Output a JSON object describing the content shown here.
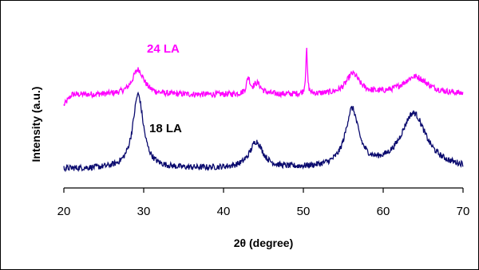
{
  "chart_data": {
    "type": "line",
    "xlabel": "2θ (degree)",
    "ylabel": "Intensity (a.u.)",
    "xlim": [
      20,
      70
    ],
    "xticks": [
      20,
      30,
      40,
      50,
      60,
      70
    ],
    "grid": false,
    "series": [
      {
        "name": "24 LA",
        "color": "#ff00ff",
        "baseline": 0.62,
        "peaks": [
          {
            "x": 29.3,
            "height": 0.21,
            "width": 0.9
          },
          {
            "x": 43.1,
            "height": 0.13,
            "width": 0.25
          },
          {
            "x": 44.2,
            "height": 0.09,
            "width": 0.6
          },
          {
            "x": 50.4,
            "height": 0.37,
            "width": 0.12
          },
          {
            "x": 56.2,
            "height": 0.17,
            "width": 1.0
          },
          {
            "x": 64.0,
            "height": 0.15,
            "width": 1.9
          }
        ],
        "noise": 0.025
      },
      {
        "name": "18 LA",
        "color": "#0a0a6e",
        "baseline": 0.0,
        "peaks": [
          {
            "x": 29.3,
            "height": 0.62,
            "width": 0.8
          },
          {
            "x": 44.1,
            "height": 0.22,
            "width": 1.0
          },
          {
            "x": 56.1,
            "height": 0.48,
            "width": 1.0
          },
          {
            "x": 63.8,
            "height": 0.46,
            "width": 1.9
          }
        ],
        "noise": 0.025
      }
    ]
  }
}
